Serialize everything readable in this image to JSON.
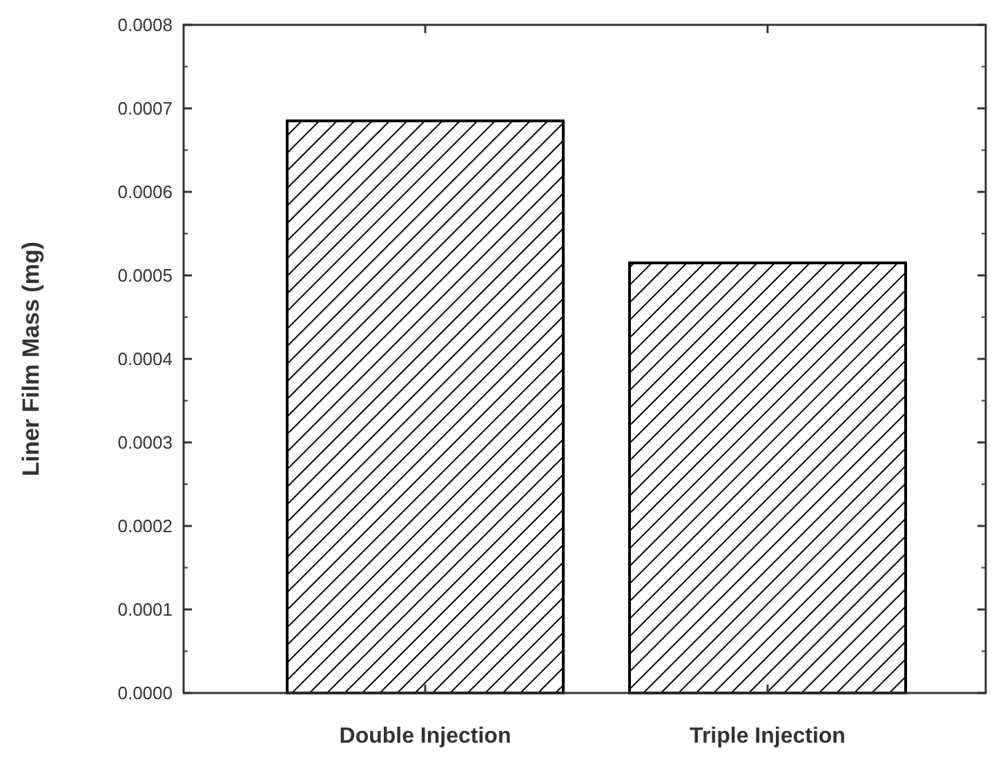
{
  "chart_data": {
    "type": "bar",
    "ylabel": "Liner Film Mass (mg)",
    "categories": [
      "Double Injection",
      "Triple Injection"
    ],
    "values": [
      0.000685,
      0.000515
    ],
    "color": "#000000",
    "ylim": [
      0,
      0.0008
    ],
    "yticks": [
      {
        "value": 0,
        "label": "0.0000"
      },
      {
        "value": 0.0001,
        "label": "0.0001"
      },
      {
        "value": 0.0002,
        "label": "0.0002"
      },
      {
        "value": 0.0003,
        "label": "0.0003"
      },
      {
        "value": 0.0004,
        "label": "0.0004"
      },
      {
        "value": 0.0005,
        "label": "0.0005"
      },
      {
        "value": 0.0006,
        "label": "0.0006"
      },
      {
        "value": 0.0007,
        "label": "0.0007"
      },
      {
        "value": 0.0008,
        "label": "0.0008"
      }
    ],
    "grid": false,
    "legend": false
  }
}
